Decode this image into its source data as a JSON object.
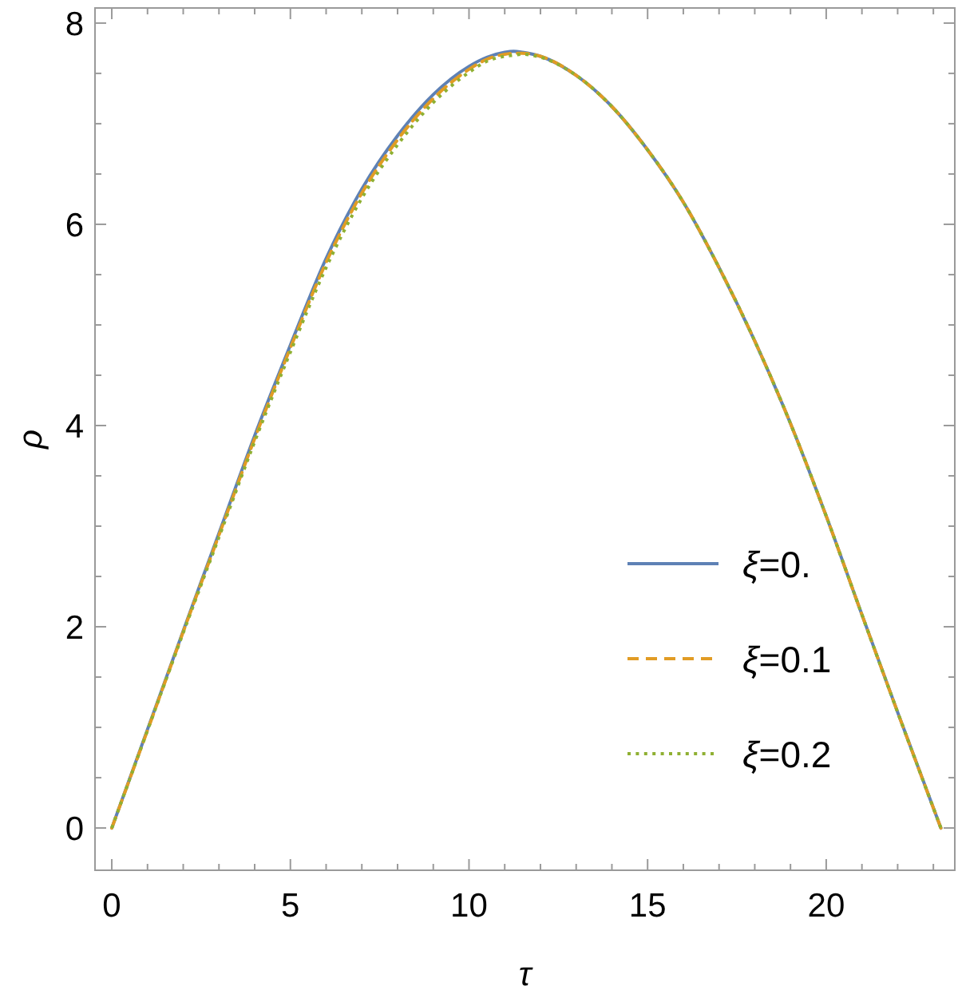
{
  "chart_data": {
    "type": "line",
    "xlabel": "τ",
    "ylabel": "ρ",
    "x": [
      0,
      1,
      2,
      3,
      4,
      5,
      6,
      7,
      8,
      9,
      10,
      10.5,
      11,
      11.25,
      11.5,
      12,
      13,
      14,
      15,
      16,
      17,
      18,
      19,
      20,
      21,
      22,
      23.21
    ],
    "series": [
      {
        "name": "ξ=0.",
        "color": "#5e81b5",
        "line_style": "solid",
        "values": [
          0,
          0.98,
          1.96,
          2.93,
          3.9,
          4.8,
          5.66,
          6.35,
          6.88,
          7.29,
          7.57,
          7.66,
          7.71,
          7.72,
          7.71,
          7.67,
          7.48,
          7.17,
          6.74,
          6.22,
          5.57,
          4.84,
          4.02,
          3.1,
          2.12,
          1.15,
          0
        ]
      },
      {
        "name": "ξ=0.1",
        "color": "#e19c24",
        "line_style": "dashed",
        "values": [
          0,
          0.97,
          1.95,
          2.91,
          3.87,
          4.77,
          5.62,
          6.31,
          6.84,
          7.25,
          7.54,
          7.64,
          7.69,
          7.7,
          7.7,
          7.67,
          7.48,
          7.17,
          6.74,
          6.22,
          5.57,
          4.84,
          4.02,
          3.1,
          2.12,
          1.15,
          0
        ]
      },
      {
        "name": "ξ=0.2",
        "color": "#8fb032",
        "line_style": "dotted",
        "values": [
          0,
          0.97,
          1.94,
          2.89,
          3.84,
          4.73,
          5.57,
          6.26,
          6.79,
          7.21,
          7.51,
          7.62,
          7.67,
          7.68,
          7.69,
          7.66,
          7.48,
          7.17,
          6.74,
          6.22,
          5.57,
          4.84,
          4.02,
          3.1,
          2.12,
          1.15,
          0
        ]
      }
    ],
    "xlim": [
      -0.47,
      23.6
    ],
    "ylim": [
      -0.42,
      8.15
    ],
    "xticks": [
      0,
      {
        "value": 1,
        "label": null
      },
      {
        "value": 2,
        "label": null
      },
      {
        "value": 3,
        "label": null
      },
      {
        "value": 4,
        "label": null
      },
      5,
      {
        "value": 6,
        "label": null
      },
      {
        "value": 7,
        "label": null
      },
      {
        "value": 8,
        "label": null
      },
      {
        "value": 9,
        "label": null
      },
      10,
      {
        "value": 11,
        "label": null
      },
      {
        "value": 12,
        "label": null
      },
      {
        "value": 13,
        "label": null
      },
      {
        "value": 14,
        "label": null
      },
      15,
      {
        "value": 16,
        "label": null
      },
      {
        "value": 17,
        "label": null
      },
      {
        "value": 18,
        "label": null
      },
      {
        "value": 19,
        "label": null
      },
      20,
      {
        "value": 21,
        "label": null
      },
      {
        "value": 22,
        "label": null
      },
      {
        "value": 23,
        "label": null
      }
    ],
    "yticks": [
      0,
      {
        "value": 0.5,
        "label": null
      },
      {
        "value": 1,
        "label": null
      },
      {
        "value": 1.5,
        "label": null
      },
      2,
      {
        "value": 2.5,
        "label": null
      },
      {
        "value": 3,
        "label": null
      },
      {
        "value": 3.5,
        "label": null
      },
      4,
      {
        "value": 4.5,
        "label": null
      },
      {
        "value": 5,
        "label": null
      },
      {
        "value": 5.5,
        "label": null
      },
      6,
      {
        "value": 6.5,
        "label": null
      },
      {
        "value": 7,
        "label": null
      },
      {
        "value": 7.5,
        "label": null
      },
      8
    ],
    "grid": false,
    "legend": "bottom right",
    "marker": "none"
  }
}
